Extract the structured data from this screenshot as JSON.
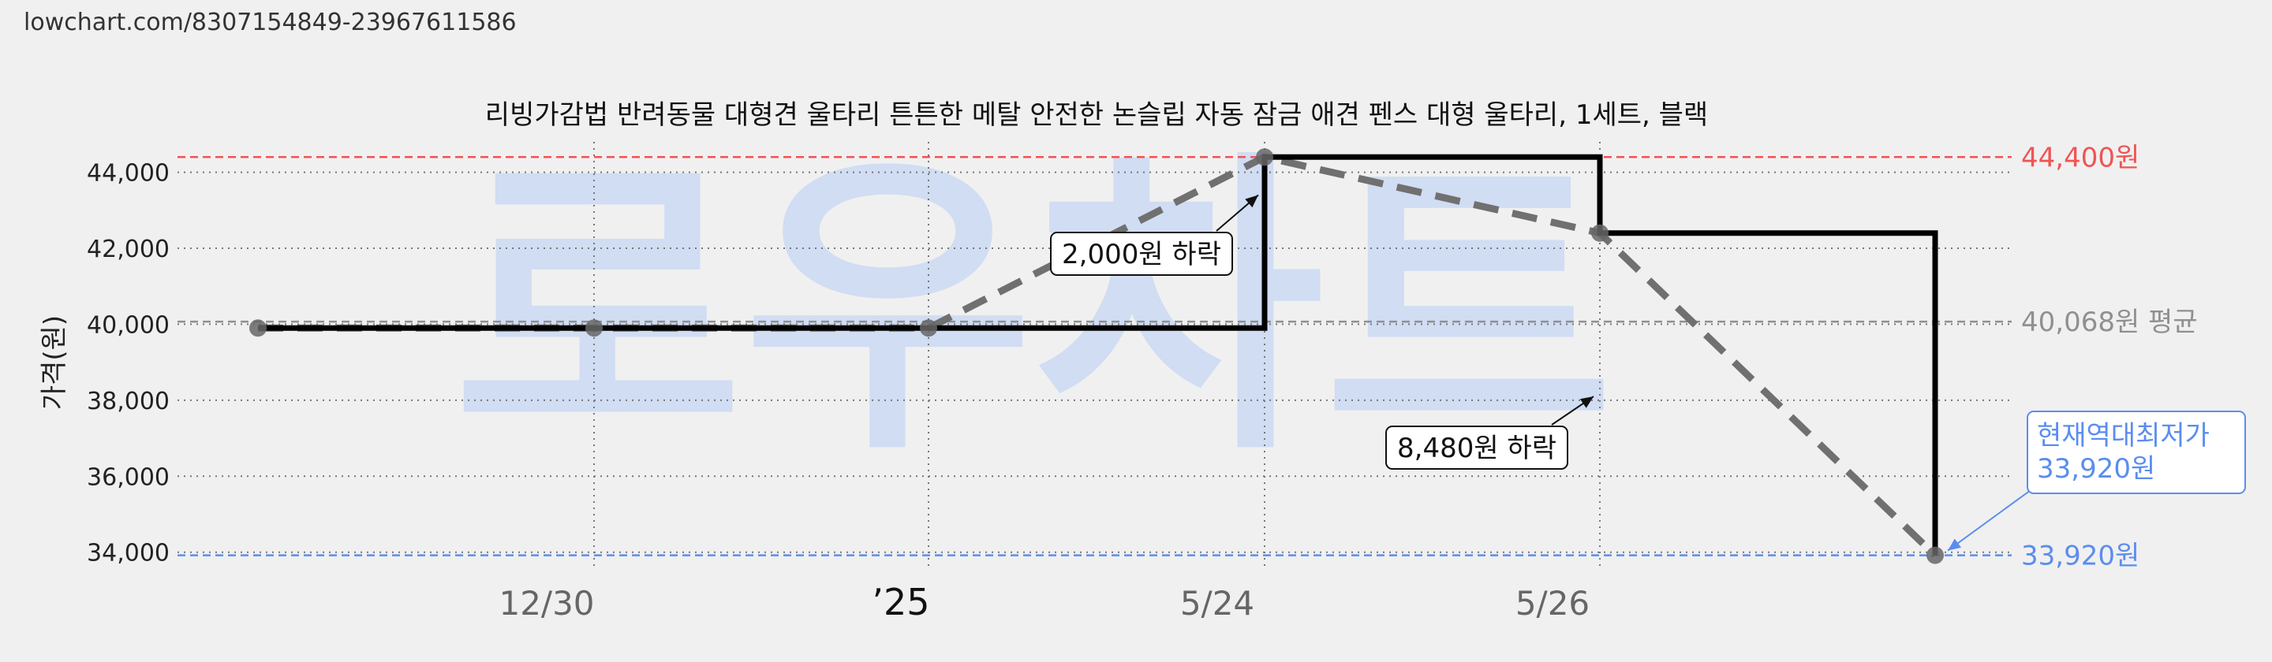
{
  "url": "lowchart.com/8307154849-23967611586",
  "watermark": "로우차트",
  "chart_data": {
    "type": "line",
    "title": "리빙가감법 반려동물 대형견 울타리 튼튼한 메탈 안전한 논슬립 자동 잠금 애견 펜스 대형 울타리, 1세트, 블랙",
    "ylabel": "가격(원)",
    "xlabel": "",
    "ylim": [
      33600,
      44800
    ],
    "grid": true,
    "yticks": [
      {
        "value": 34000,
        "label": "34,000"
      },
      {
        "value": 36000,
        "label": "36,000"
      },
      {
        "value": 38000,
        "label": "38,000"
      },
      {
        "value": 40000,
        "label": "40,000"
      },
      {
        "value": 42000,
        "label": "42,000"
      },
      {
        "value": 44000,
        "label": "44,000"
      }
    ],
    "xticks": [
      {
        "index": 1,
        "label": "12/30",
        "style": "normal"
      },
      {
        "index": 2,
        "label": "’25",
        "style": "year"
      },
      {
        "index": 3,
        "label": "5/24",
        "style": "normal"
      },
      {
        "index": 4,
        "label": "5/26",
        "style": "normal"
      }
    ],
    "series": [
      {
        "values": [
          39900,
          39900,
          39900,
          44400,
          42400,
          33920
        ],
        "color": "#000000",
        "style": "step"
      },
      {
        "values": [
          39900,
          39900,
          39900,
          44400,
          42400,
          33920
        ],
        "color": "#707070",
        "style": "dashed"
      }
    ],
    "reference_lines": [
      {
        "value": 44400,
        "label": "44,400원",
        "color": "#f05454"
      },
      {
        "value": 40068,
        "label": "40,068원 평균",
        "color": "#909090"
      },
      {
        "value": 33920,
        "label": "33,920원",
        "color": "#5b8def"
      }
    ],
    "annotations": [
      {
        "text": "2,000원 하락",
        "target_index": 3,
        "target_value": 43400
      },
      {
        "text": "8,480원 하락",
        "target_index": 4,
        "target_value": 38100
      }
    ],
    "current_label": [
      "현재역대최저가",
      "33,920원"
    ],
    "colors": {
      "max": "#f05454",
      "avg": "#909090",
      "min": "#5b8def",
      "line": "#000000",
      "dash": "#707070"
    }
  }
}
